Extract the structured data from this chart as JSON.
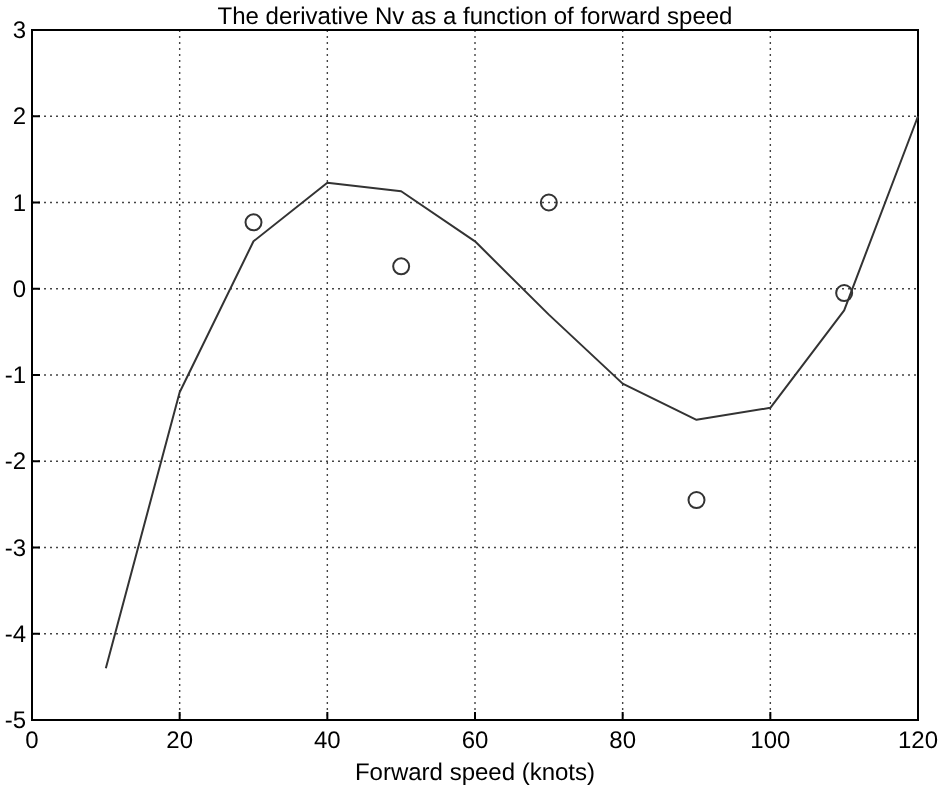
{
  "chart_data": {
    "type": "line",
    "title": "The derivative Nv as a function of forward speed",
    "xlabel": "Forward speed (knots)",
    "xlim": [
      0,
      120
    ],
    "xticks": [
      0,
      20,
      40,
      60,
      80,
      100,
      120
    ],
    "ylim": [
      -5,
      3
    ],
    "yticks": [
      -5,
      -4,
      -3,
      -2,
      -1,
      0,
      1,
      2,
      3
    ],
    "grid": true,
    "series": [
      {
        "color": "#333333",
        "marker": "none",
        "x": [
          10,
          20,
          30,
          40,
          50,
          60,
          70,
          80,
          90,
          100,
          110,
          120
        ],
        "values": [
          -4.4,
          -1.2,
          0.55,
          1.23,
          1.13,
          0.55,
          -0.3,
          -1.1,
          -1.52,
          -1.38,
          -0.25,
          2.0
        ]
      },
      {
        "type": "scatter",
        "color": "#333333",
        "marker": "circle",
        "x": [
          30,
          50,
          70,
          90,
          110
        ],
        "values": [
          0.77,
          0.26,
          1.0,
          -2.45,
          -0.05
        ]
      }
    ]
  }
}
